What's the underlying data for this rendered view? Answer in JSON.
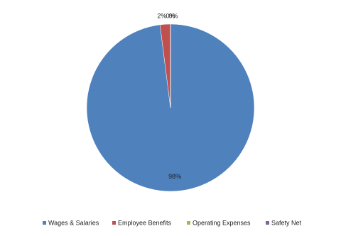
{
  "chart_data": {
    "type": "pie",
    "categories": [
      "Wages & Salaries",
      "Employee Benefits",
      "Operating Expenses",
      "Safety Net"
    ],
    "values": [
      98,
      2,
      0,
      0
    ],
    "value_labels": [
      "98%",
      "2%",
      "0%",
      "0%"
    ],
    "colors": [
      "#4f81bd",
      "#c0504d",
      "#9bbb59",
      "#8064a2"
    ],
    "legend": "bottom"
  }
}
